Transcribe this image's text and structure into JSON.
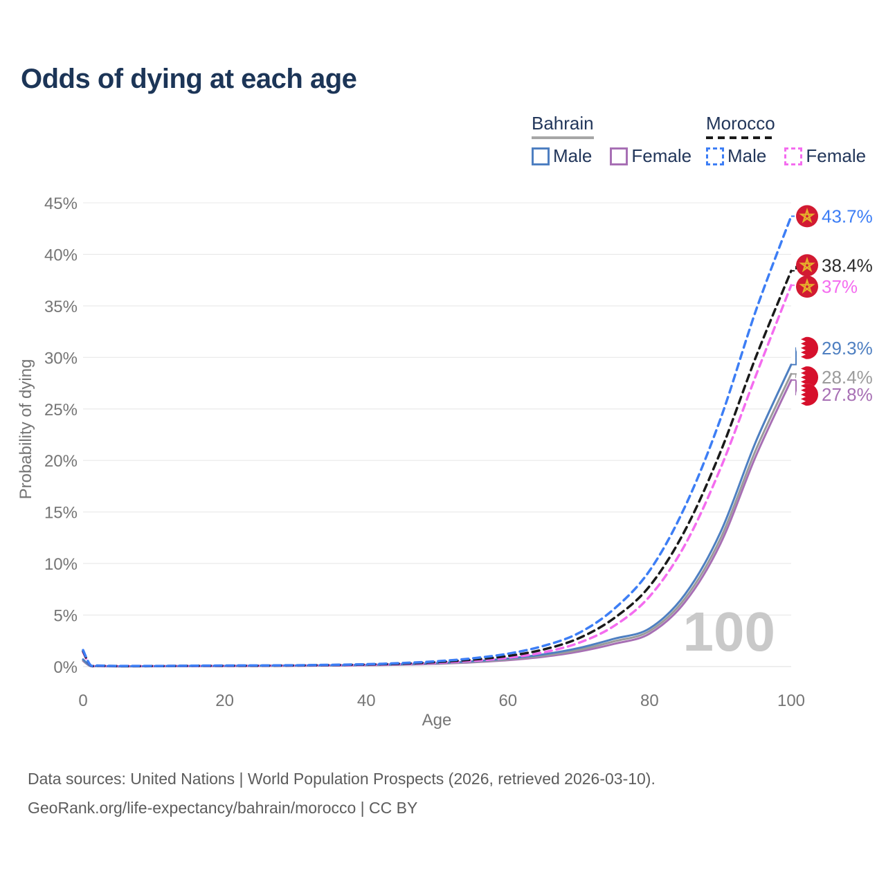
{
  "title": "Odds of dying at each age",
  "legend": {
    "groups": [
      {
        "country": "Bahrain",
        "line_style": "solid",
        "underline_color": "#a6a6a6",
        "items": [
          {
            "label": "Male",
            "color": "#4e7fc1"
          },
          {
            "label": "Female",
            "color": "#a76fb4"
          }
        ]
      },
      {
        "country": "Morocco",
        "line_style": "dashed",
        "underline_color": "#1a1a1a",
        "items": [
          {
            "label": "Male",
            "color": "#3d7ef5"
          },
          {
            "label": "Female",
            "color": "#f46cef"
          }
        ]
      }
    ]
  },
  "footer": {
    "line1": "Data sources: United Nations | World Population Prospects (2026, retrieved 2026-03-10).",
    "line2": "GeoRank.org/life-expectancy/bahrain/morocco | CC BY"
  },
  "colors": {
    "title": "#1c3557",
    "legend_text": "#22365a",
    "tick_text": "#757575",
    "grid": "#e8e8e8",
    "footer": "#5c5c5c",
    "watermark": "#c9c9c9",
    "background": "#ffffff"
  },
  "icons": {
    "morocco-flag-icon": {
      "circle": "#d21a32",
      "star": "#e7b12c"
    },
    "bahrain-flag-icon": {
      "circle_left": "#ffffff",
      "circle_right": "#d6102c"
    }
  },
  "chart_data": {
    "type": "line",
    "title": "Odds of dying at each age",
    "xlabel": "Age",
    "ylabel": "Probability of dying",
    "xlim": [
      0,
      100
    ],
    "ylim": [
      0,
      45
    ],
    "grid": "horizontal-only",
    "legend_position": "top-right",
    "watermark": "100",
    "x_tick_values": [
      0,
      20,
      40,
      60,
      80,
      100
    ],
    "x_tick_labels": [
      "0",
      "20",
      "40",
      "60",
      "80",
      "100"
    ],
    "y_tick_values": [
      0,
      5,
      10,
      15,
      20,
      25,
      30,
      35,
      40,
      45
    ],
    "y_tick_labels": [
      "0%",
      "5%",
      "10%",
      "15%",
      "20%",
      "25%",
      "30%",
      "35%",
      "40%",
      "45%"
    ],
    "ages": [
      0,
      1,
      2,
      5,
      10,
      15,
      20,
      25,
      30,
      35,
      40,
      45,
      50,
      55,
      60,
      65,
      70,
      75,
      80,
      85,
      90,
      95,
      100
    ],
    "series": [
      {
        "id": "morocco-male",
        "name": "Morocco Male",
        "country": "Morocco",
        "sex": "Male",
        "color": "#3d7ef5",
        "dash": "dashed",
        "flag": "morocco",
        "end_label": "43.7%",
        "label_color": "#3d7ef5",
        "label_nudge": 0,
        "values": [
          1.6,
          0.18,
          0.1,
          0.06,
          0.06,
          0.08,
          0.1,
          0.11,
          0.13,
          0.17,
          0.23,
          0.34,
          0.52,
          0.8,
          1.25,
          2.0,
          3.25,
          5.6,
          9.3,
          15.5,
          24.0,
          34.5,
          43.7
        ]
      },
      {
        "id": "morocco-both",
        "name": "Morocco",
        "country": "Morocco",
        "sex": "Both",
        "color": "#1a1a1a",
        "dash": "dashed",
        "flag": "morocco",
        "end_label": "38.4%",
        "label_color": "#2b2b2b",
        "label_nudge": -8,
        "values": [
          1.5,
          0.16,
          0.09,
          0.05,
          0.05,
          0.07,
          0.08,
          0.09,
          0.11,
          0.15,
          0.2,
          0.29,
          0.44,
          0.67,
          1.03,
          1.65,
          2.75,
          4.7,
          7.8,
          13.2,
          20.8,
          30.0,
          38.4
        ]
      },
      {
        "id": "morocco-female",
        "name": "Morocco Female",
        "country": "Morocco",
        "sex": "Female",
        "color": "#f46cef",
        "dash": "dashed",
        "flag": "morocco",
        "end_label": "37%",
        "label_color": "#f46cef",
        "label_nudge": 2,
        "values": [
          1.4,
          0.15,
          0.08,
          0.05,
          0.05,
          0.06,
          0.07,
          0.08,
          0.1,
          0.13,
          0.17,
          0.25,
          0.37,
          0.56,
          0.85,
          1.38,
          2.3,
          3.95,
          6.8,
          11.8,
          19.2,
          28.2,
          37.0
        ]
      },
      {
        "id": "bahrain-male",
        "name": "Bahrain Male",
        "country": "Bahrain",
        "sex": "Male",
        "color": "#4e7fc1",
        "dash": "solid",
        "flag": "bahrain",
        "end_label": "29.3%",
        "label_color": "#4e7fc1",
        "label_nudge": -24,
        "values": [
          0.7,
          0.08,
          0.05,
          0.03,
          0.04,
          0.06,
          0.07,
          0.08,
          0.1,
          0.12,
          0.16,
          0.23,
          0.34,
          0.51,
          0.78,
          1.18,
          1.8,
          2.7,
          3.7,
          7.0,
          13.0,
          21.8,
          29.3
        ]
      },
      {
        "id": "bahrain-both",
        "name": "Bahrain",
        "country": "Bahrain",
        "sex": "Both",
        "color": "#9b9b9b",
        "dash": "solid",
        "flag": "bahrain",
        "end_label": "28.4%",
        "label_color": "#9b9b9b",
        "label_nudge": 5,
        "values": [
          0.62,
          0.07,
          0.04,
          0.03,
          0.04,
          0.05,
          0.06,
          0.07,
          0.09,
          0.11,
          0.14,
          0.2,
          0.3,
          0.46,
          0.7,
          1.06,
          1.62,
          2.45,
          3.45,
          6.6,
          12.4,
          21.0,
          28.4
        ]
      },
      {
        "id": "bahrain-female",
        "name": "Bahrain Female",
        "country": "Bahrain",
        "sex": "Female",
        "color": "#a76fb4",
        "dash": "solid",
        "flag": "bahrain",
        "end_label": "27.8%",
        "label_color": "#a76fb4",
        "label_nudge": 21,
        "values": [
          0.55,
          0.06,
          0.04,
          0.02,
          0.03,
          0.04,
          0.05,
          0.06,
          0.08,
          0.1,
          0.13,
          0.18,
          0.27,
          0.41,
          0.62,
          0.95,
          1.45,
          2.2,
          3.2,
          6.25,
          11.9,
          20.4,
          27.8
        ]
      }
    ]
  }
}
